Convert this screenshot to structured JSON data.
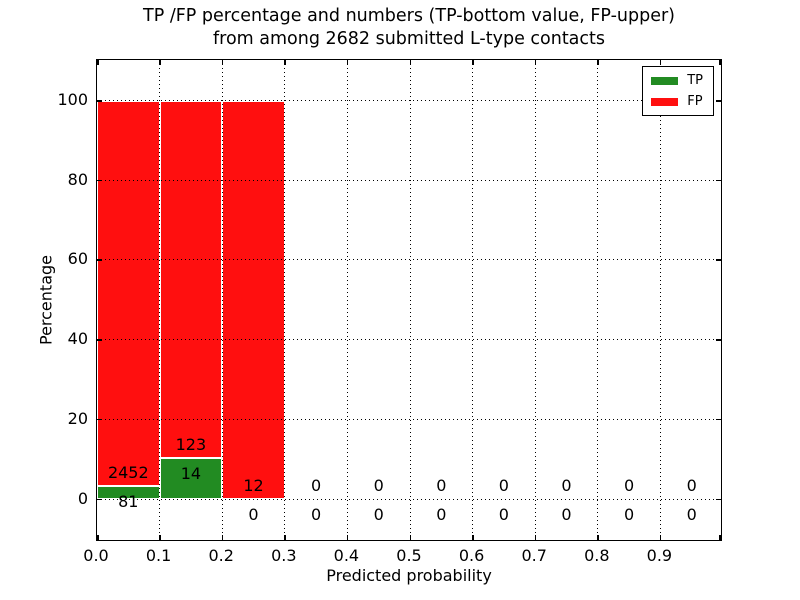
{
  "title": {
    "line1": "TP /FP percentage and numbers (TP-bottom value, FP-upper)",
    "line2": "from among 2682 submitted L-type contacts"
  },
  "chart_data": {
    "type": "bar",
    "subtype": "stacked-percentage-histogram",
    "title": "TP /FP percentage and numbers (TP-bottom value, FP-upper) from among 2682 submitted L-type contacts",
    "xlabel": "Predicted probability",
    "ylabel": "Percentage",
    "total_submitted_contacts": 2682,
    "bin_width": 0.1,
    "categories": [
      "0.0-0.1",
      "0.1-0.2",
      "0.2-0.3",
      "0.3-0.4",
      "0.4-0.5",
      "0.5-0.6",
      "0.6-0.7",
      "0.7-0.8",
      "0.8-0.9",
      "0.9-1.0"
    ],
    "series": [
      {
        "name": "TP",
        "color": "#228b22",
        "counts": [
          81,
          14,
          0,
          0,
          0,
          0,
          0,
          0,
          0,
          0
        ]
      },
      {
        "name": "FP",
        "color": "#ff0f0f",
        "counts": [
          2452,
          123,
          12,
          0,
          0,
          0,
          0,
          0,
          0,
          0
        ]
      }
    ],
    "bar_total_percent_when_nonempty": 100,
    "annotation_note": "TP count printed below bar base, FP count printed above TP segment top",
    "xticks": [
      "0.0",
      "0.1",
      "0.2",
      "0.3",
      "0.4",
      "0.5",
      "0.6",
      "0.7",
      "0.8",
      "0.9"
    ],
    "yticks": [
      0,
      20,
      40,
      60,
      80,
      100
    ],
    "xlim": [
      0.0,
      1.0
    ],
    "ylim": [
      -11,
      110
    ],
    "grid": true,
    "grid_style": "dotted",
    "legend_position": "upper right",
    "legend": [
      "TP",
      "FP"
    ]
  }
}
